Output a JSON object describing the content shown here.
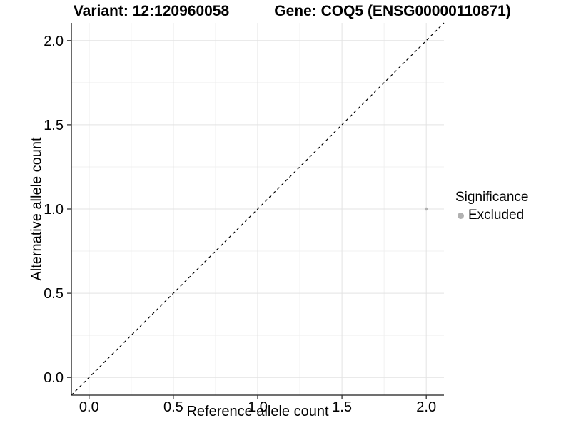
{
  "chart_data": {
    "type": "scatter",
    "title_left": "Variant: 12:120960058",
    "title_right": "Gene: COQ5 (ENSG00000110871)",
    "xlabel": "Reference allele count",
    "ylabel": "Alternative allele count",
    "xlim": [
      -0.105,
      2.105
    ],
    "ylim": [
      -0.105,
      2.105
    ],
    "x_ticks": [
      0.0,
      0.5,
      1.0,
      1.5,
      2.0
    ],
    "x_tick_labels": [
      "0.0",
      "0.5",
      "1.0",
      "1.5",
      "2.0"
    ],
    "y_ticks": [
      0.0,
      0.5,
      1.0,
      1.5,
      2.0
    ],
    "y_tick_labels": [
      "0.0",
      "0.5",
      "1.0",
      "1.5",
      "2.0"
    ],
    "minor_ticks": [
      0.25,
      0.75,
      1.25,
      1.75
    ],
    "grid": {
      "major_color": "#e3e3e3",
      "minor_color": "#f0f0f0",
      "on": true
    },
    "reference_line": {
      "slope": 1,
      "intercept": 0,
      "style": "dashed",
      "color": "#000000"
    },
    "points": [
      {
        "x": 2.0,
        "y": 1.0,
        "series": "Excluded",
        "color": "#b1b1b1",
        "radius": 2.3
      }
    ],
    "legend": {
      "position": "right",
      "title": "Significance",
      "items": [
        {
          "label": "Excluded",
          "color": "#b1b1b1"
        }
      ]
    },
    "axis_color": "#1a1a1a",
    "tick_color": "#333333",
    "text_color": "#000000"
  }
}
